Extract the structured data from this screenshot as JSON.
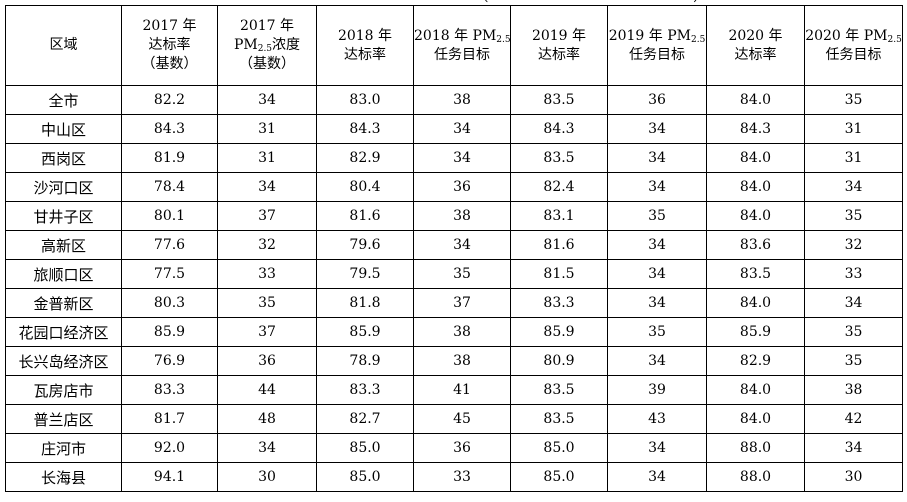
{
  "table": {
    "header": {
      "area": "区域",
      "c1": {
        "l1": "2017 年",
        "l2": "达标率",
        "l3": "（基数）"
      },
      "c2": {
        "l1": "2017 年",
        "pm": "PM",
        "sub": "2.5",
        "l2rest": "浓度",
        "l3": "（基数）"
      },
      "c3": {
        "l1": "2018 年",
        "l2": "达标率"
      },
      "c4": {
        "l1": "2018 年 PM",
        "sub": "2.5",
        "l2": "任务目标"
      },
      "c5": {
        "l1": "2019 年",
        "l2": "达标率"
      },
      "c6": {
        "l1": "2019 年 PM",
        "sub": "2.5",
        "l2": "任务目标"
      },
      "c7": {
        "l1": "2020 年",
        "l2": "达标率"
      },
      "c8": {
        "l1": "2020 年 PM",
        "sub": "2.5",
        "l2": "任务目标"
      }
    },
    "rows": [
      [
        "全市",
        "82.2",
        "34",
        "83.0",
        "38",
        "83.5",
        "36",
        "84.0",
        "35"
      ],
      [
        "中山区",
        "84.3",
        "31",
        "84.3",
        "34",
        "84.3",
        "34",
        "84.3",
        "31"
      ],
      [
        "西岗区",
        "81.9",
        "31",
        "82.9",
        "34",
        "83.5",
        "34",
        "84.0",
        "31"
      ],
      [
        "沙河口区",
        "78.4",
        "34",
        "80.4",
        "36",
        "82.4",
        "34",
        "84.0",
        "34"
      ],
      [
        "甘井子区",
        "80.1",
        "37",
        "81.6",
        "38",
        "83.1",
        "35",
        "84.0",
        "35"
      ],
      [
        "高新区",
        "77.6",
        "32",
        "79.6",
        "34",
        "81.6",
        "34",
        "83.6",
        "32"
      ],
      [
        "旅顺口区",
        "77.5",
        "33",
        "79.5",
        "35",
        "81.5",
        "34",
        "83.5",
        "33"
      ],
      [
        "金普新区",
        "80.3",
        "35",
        "81.8",
        "37",
        "83.3",
        "34",
        "84.0",
        "34"
      ],
      [
        "花园口经济区",
        "85.9",
        "37",
        "85.9",
        "38",
        "85.9",
        "35",
        "85.9",
        "35"
      ],
      [
        "长兴岛经济区",
        "76.9",
        "36",
        "78.9",
        "38",
        "80.9",
        "34",
        "82.9",
        "35"
      ],
      [
        "瓦房店市",
        "83.3",
        "44",
        "83.3",
        "41",
        "83.5",
        "39",
        "84.0",
        "38"
      ],
      [
        "普兰店区",
        "81.7",
        "48",
        "82.7",
        "45",
        "83.5",
        "43",
        "84.0",
        "42"
      ],
      [
        "庄河市",
        "92.0",
        "34",
        "85.0",
        "36",
        "85.0",
        "34",
        "88.0",
        "34"
      ],
      [
        "长海县",
        "94.1",
        "30",
        "85.0",
        "33",
        "85.0",
        "34",
        "88.0",
        "30"
      ]
    ]
  }
}
